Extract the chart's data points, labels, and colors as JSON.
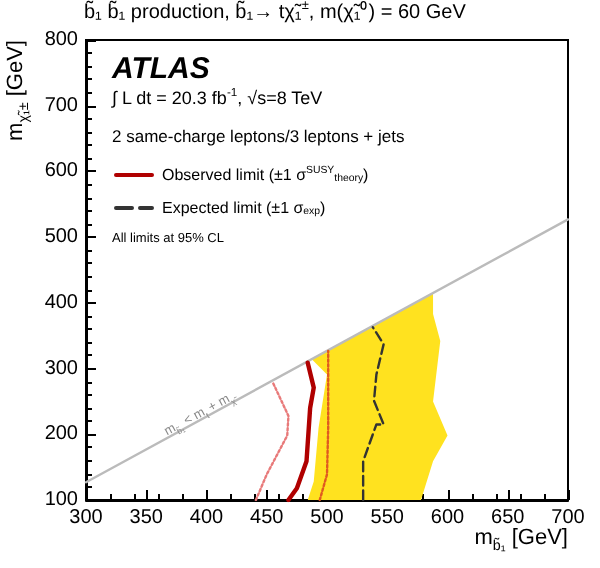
{
  "chart_data": {
    "type": "line",
    "title": "b̃₁ b̃₁ production, b̃₁→ tχ̃₁$^{±}$, m(χ̃₁⁰) = 60 GeV",
    "xlabel": "m$_{b̃₁}$ [GeV]",
    "ylabel": "m$_{χ̃₁±}$ [GeV]",
    "xlim": [
      300,
      700
    ],
    "xticks": [
      300,
      350,
      400,
      450,
      500,
      550,
      600,
      650,
      700
    ],
    "ylim": [
      100,
      800
    ],
    "yticks": [
      100,
      200,
      300,
      400,
      500,
      600,
      700,
      800
    ],
    "grid": false,
    "legend": "top left",
    "marker": "none",
    "annotations": [
      "ATLAS",
      "∫ L dt = 20.3 fb$^{-1}$, √s=8 TeV",
      "2 same-charge leptons/3 leptons + jets",
      "All limits at 95% CL",
      {
        "text": "m$_{b̃₁}$ < m$_{t}$ + m$_{χ̃}$",
        "x": 395,
        "y": 228
      }
    ],
    "series": [
      {
        "type": "area",
        "color": "#ffe21f",
        "x": [
          488,
          538,
          588,
          588,
          594,
          588,
          600,
          588,
          578,
          484,
          489,
          493,
          500,
          488
        ],
        "values": [
          315,
          365,
          415,
          383,
          342,
          250,
          198,
          159,
          100,
          100,
          128,
          210,
          291,
          313
        ]
      },
      {
        "color": "#bbbbbb",
        "line_style": "solid",
        "x": [
          300,
          700
        ],
        "values": [
          127,
          527
        ]
      },
      {
        "name": "Observed limit (±1 σ$^{SUSY}$$_{theory}$)",
        "color": "#b00000",
        "line_style": "solid",
        "x": [
          468,
          475,
          483,
          486,
          489,
          484
        ],
        "values": [
          100,
          118,
          159,
          240,
          271,
          309
        ]
      },
      {
        "name": "Expected limit (±1 σ$_{exp}$)",
        "color": "#333333",
        "line_style": "dashed",
        "x": [
          530,
          530,
          541,
          547,
          539,
          541,
          547,
          538
        ],
        "values": [
          100,
          159,
          215,
          215,
          251,
          291,
          337,
          363
        ]
      },
      {
        "color": "#e87a7a",
        "line_style": "dotted",
        "x": [
          441,
          450,
          467,
          468,
          455
        ],
        "values": [
          100,
          139,
          198,
          228,
          279
        ]
      },
      {
        "color": "#e05a20",
        "line_style": "dotted",
        "x": [
          494,
          500,
          501,
          501
        ],
        "values": [
          100,
          139,
          210,
          327
        ]
      }
    ]
  }
}
